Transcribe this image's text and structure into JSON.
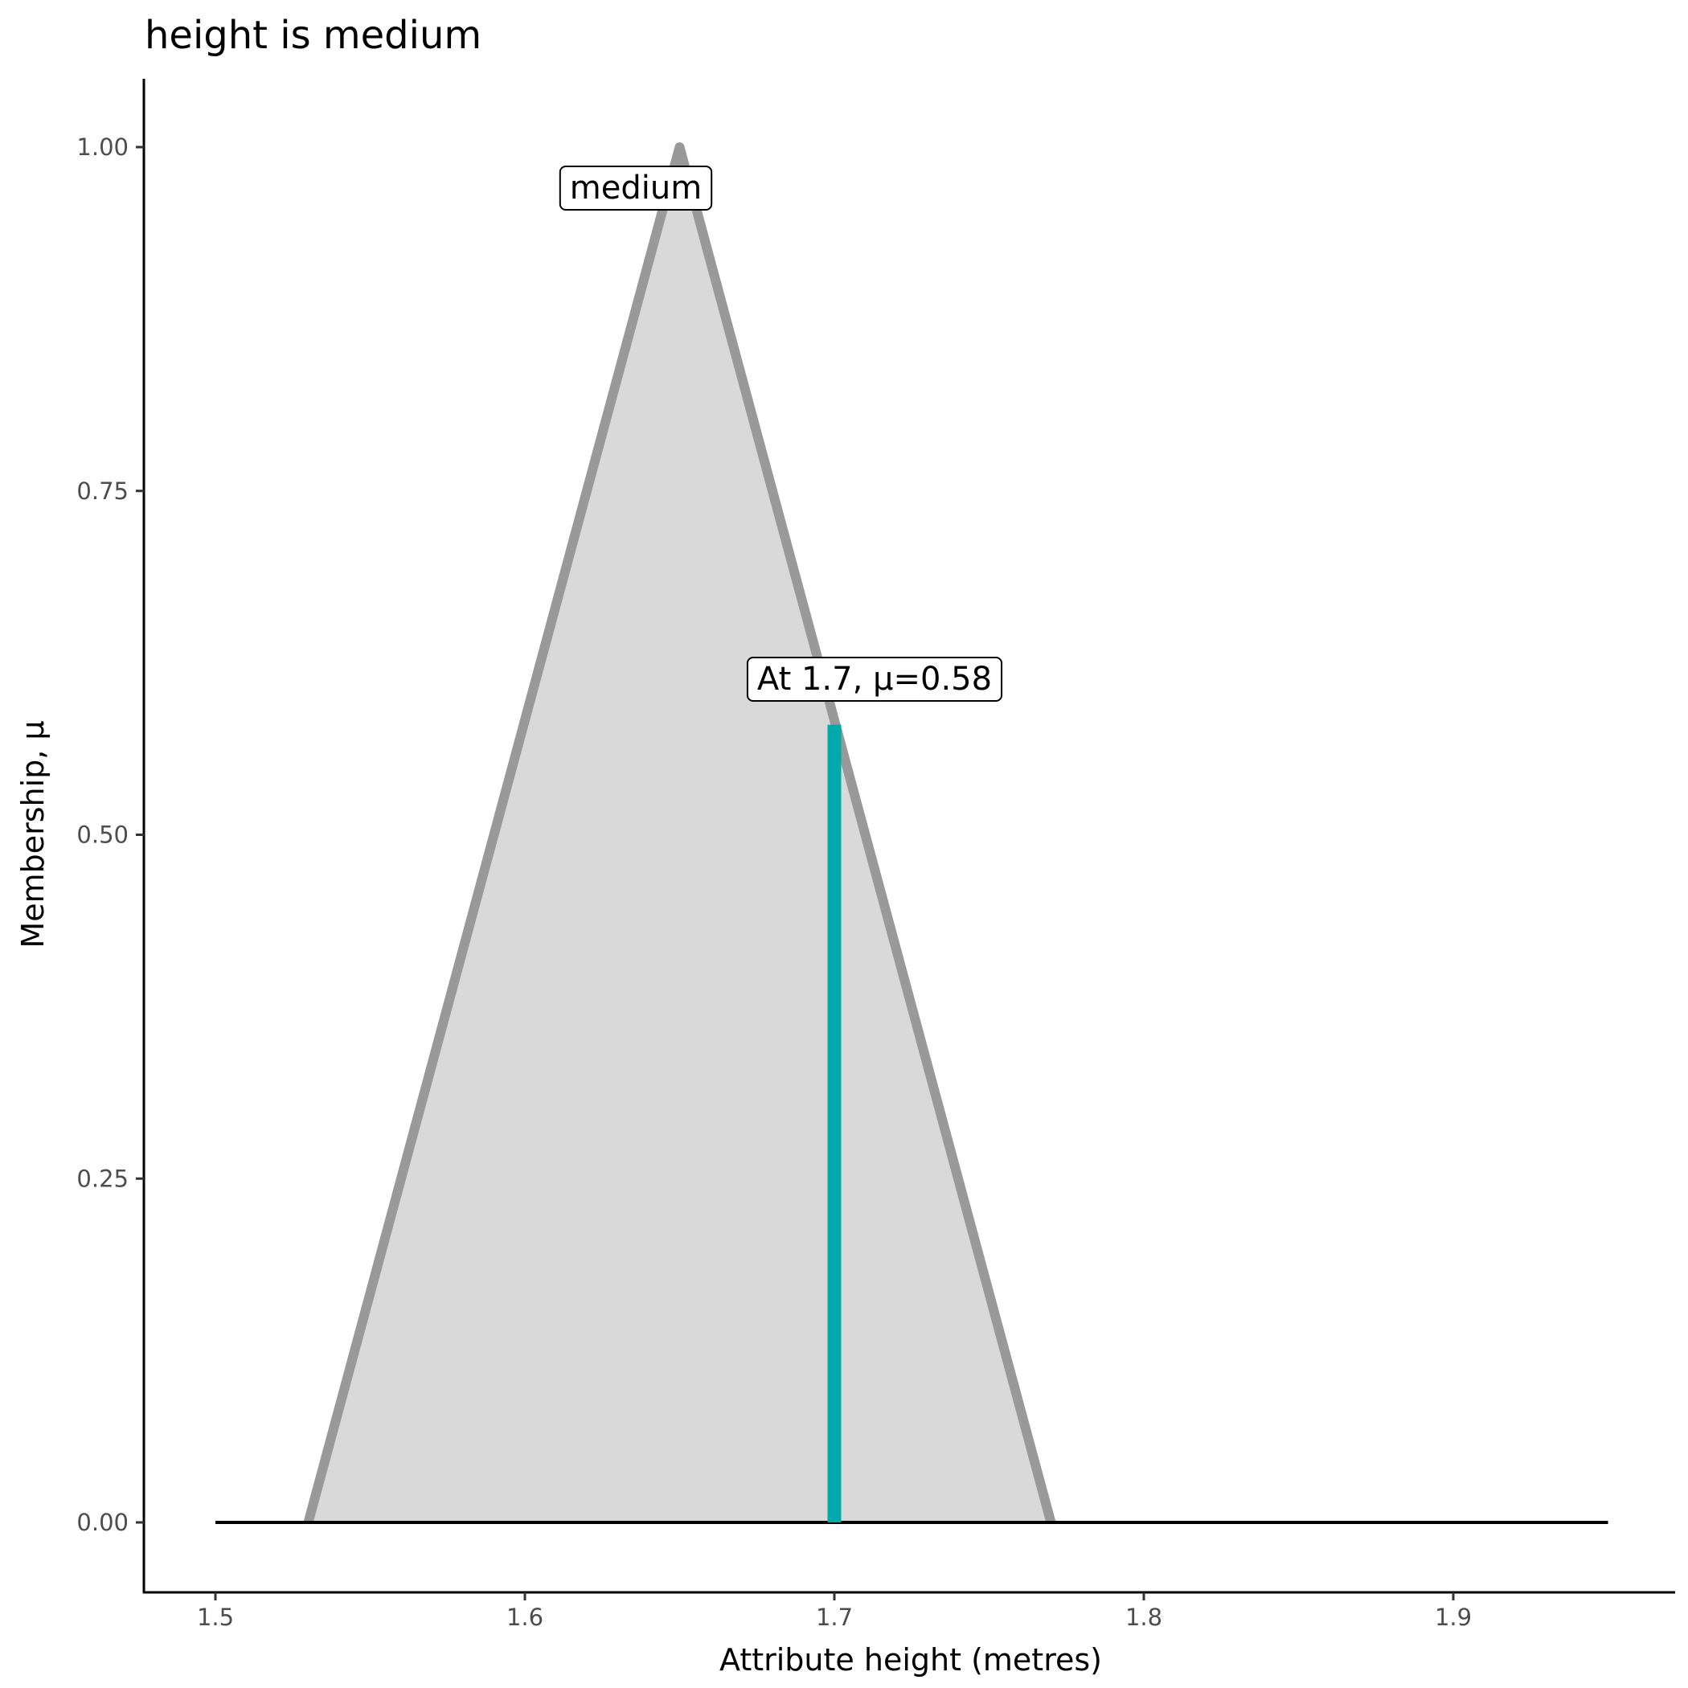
{
  "chart_data": {
    "type": "area",
    "title": "height is medium",
    "xlabel": "Attribute height (metres)",
    "ylabel": "Membership, μ",
    "xlim": [
      1.477,
      1.972
    ],
    "ylim": [
      -0.05,
      1.05
    ],
    "x_ticks": [
      1.5,
      1.6,
      1.7,
      1.8,
      1.9
    ],
    "x_tick_labels": [
      "1.5",
      "1.6",
      "1.7",
      "1.8",
      "1.9"
    ],
    "y_ticks": [
      0,
      0.25,
      0.5,
      0.75,
      1.0
    ],
    "y_tick_labels": [
      "0.00",
      "0.25",
      "0.50",
      "0.75",
      "1.00"
    ],
    "grid": false,
    "membership_function": {
      "name": "medium",
      "x": [
        1.5,
        1.53,
        1.65,
        1.77,
        1.95
      ],
      "y": [
        0,
        0,
        1,
        0,
        0
      ],
      "fill_color": "#d9d9d9",
      "line_color": "#999999"
    },
    "evaluation": {
      "x": 1.7,
      "mu": 0.58,
      "label": "At 1.7, μ=0.58",
      "color": "#00AAAA"
    },
    "annotations": [
      {
        "text": "medium",
        "x": 1.635,
        "y": 0.97
      }
    ]
  }
}
